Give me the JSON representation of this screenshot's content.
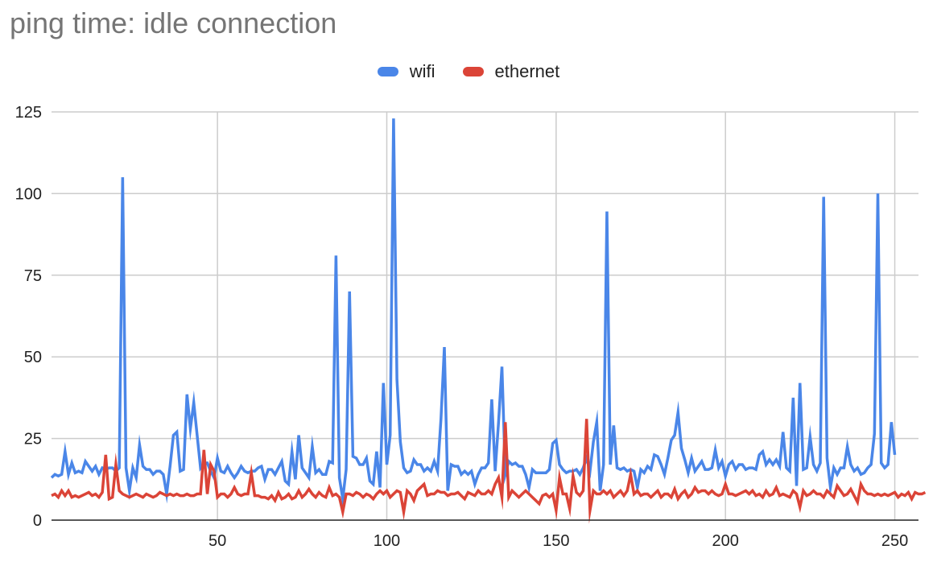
{
  "chart_data": {
    "type": "line",
    "title": "ping time: idle connection",
    "xlabel": "",
    "ylabel": "",
    "xlim": [
      1,
      257
    ],
    "ylim": [
      0,
      125
    ],
    "x_ticks": [
      50,
      100,
      150,
      200,
      250
    ],
    "y_ticks": [
      0,
      25,
      50,
      75,
      100,
      125
    ],
    "grid": true,
    "legend_position": "top-center",
    "series": [
      {
        "name": "wifi",
        "color": "#4a86e8",
        "x_start": 1,
        "values": [
          13,
          14,
          13.5,
          14,
          21,
          14,
          17.5,
          14.5,
          15,
          14.5,
          18,
          16.5,
          15,
          16.5,
          14,
          16,
          15.5,
          16,
          16,
          15,
          16,
          105,
          16,
          9,
          16,
          13,
          23,
          16.5,
          15.5,
          15.5,
          14,
          15,
          15,
          14,
          8,
          16.5,
          26,
          27,
          15,
          15.5,
          38.5,
          28,
          36,
          26,
          16,
          17.5,
          17.5,
          15,
          13,
          19,
          15,
          14.5,
          16.5,
          14.5,
          13,
          14.5,
          16.5,
          15,
          14.5,
          15,
          15,
          16,
          16.5,
          12.5,
          15.5,
          15.5,
          14,
          16,
          18,
          12,
          11,
          21,
          12.5,
          26,
          16,
          14.5,
          13,
          22.5,
          14.5,
          15.5,
          14,
          14,
          18,
          17.5,
          81,
          13,
          6.5,
          15.5,
          70,
          19.5,
          19,
          17,
          17,
          19,
          12,
          11,
          21,
          10,
          42,
          17,
          26,
          123,
          43,
          24,
          16,
          14.5,
          15,
          18.5,
          17,
          17,
          15,
          16,
          15,
          18,
          15,
          31,
          53,
          9,
          17,
          16.5,
          16.5,
          14,
          15,
          14,
          15,
          11,
          14,
          16,
          16,
          17.5,
          37,
          15,
          30,
          47,
          14,
          18,
          17,
          17.5,
          16.5,
          16.5,
          14,
          10,
          15.5,
          14.5,
          14.5,
          14.5,
          14.5,
          15.5,
          23.5,
          24.5,
          17,
          15.5,
          14.5,
          15,
          15,
          15.5,
          14,
          16,
          19,
          15,
          24,
          30,
          9,
          17,
          94.5,
          17,
          29,
          16,
          15.5,
          16,
          15,
          15.5,
          15,
          10,
          15.5,
          14.5,
          16.5,
          15.5,
          20,
          19.5,
          17,
          14,
          19,
          24.5,
          26,
          33,
          22,
          18.5,
          14.5,
          19,
          15,
          16.5,
          18,
          15.5,
          15.5,
          16,
          21.5,
          16,
          18,
          13.5,
          17,
          18,
          15.5,
          17,
          17,
          15.5,
          16,
          16,
          15.5,
          20,
          21,
          17,
          18.5,
          17,
          18.5,
          16.5,
          27,
          16,
          15,
          37.5,
          10.5,
          42,
          15.5,
          16,
          25.5,
          17,
          15,
          17.5,
          99,
          19,
          10,
          16,
          14,
          16,
          16,
          22.5,
          17,
          15,
          16,
          14,
          14.5,
          16,
          17,
          26.5,
          100,
          17.5,
          16,
          17,
          30,
          20
        ]
      },
      {
        "name": "ethernet",
        "color": "#db4437",
        "x_start": 1,
        "values": [
          7.5,
          8,
          7,
          9,
          7.5,
          9,
          7,
          7.5,
          7,
          7.5,
          8,
          8.5,
          7.5,
          8,
          7,
          8.5,
          20,
          6.5,
          7,
          17,
          9,
          8,
          7.5,
          7,
          7.5,
          8,
          7.5,
          7,
          8,
          7.5,
          7,
          7.5,
          8.5,
          8,
          7.5,
          8,
          7.5,
          8,
          7.5,
          7.5,
          8,
          7.5,
          7.5,
          8,
          8,
          21.5,
          8,
          17,
          15,
          7,
          8,
          8,
          7,
          8,
          10,
          8,
          7.5,
          8,
          8,
          14.5,
          7.5,
          7.5,
          7,
          7,
          6.5,
          7.5,
          6,
          8.5,
          6.5,
          7,
          8,
          6.5,
          7,
          9,
          7,
          8,
          9.5,
          8,
          7,
          8.5,
          7.5,
          7,
          10,
          7.5,
          8,
          7,
          2.5,
          8,
          8,
          7.5,
          8.5,
          8,
          7,
          8,
          7.5,
          6.5,
          8,
          9,
          8,
          9,
          7,
          8,
          9,
          8.5,
          2.5,
          9,
          8,
          6,
          9,
          10,
          11,
          7.5,
          8,
          8,
          9,
          8.5,
          8.5,
          7.5,
          8,
          8,
          8.5,
          7.5,
          6.5,
          8.5,
          8,
          7.5,
          9,
          8,
          8,
          9,
          8,
          11,
          13,
          7,
          30,
          7,
          9,
          8,
          7,
          8,
          9,
          8,
          7,
          6,
          5,
          7.5,
          8,
          7,
          8,
          3,
          13,
          8,
          8,
          3.5,
          13.5,
          8.5,
          7.5,
          9,
          31,
          3,
          9,
          8,
          8,
          9,
          8,
          9,
          7,
          8,
          9,
          7.5,
          9,
          14,
          8,
          9,
          7.5,
          8,
          8,
          7,
          8,
          9,
          7,
          8,
          8,
          7,
          9.5,
          6.5,
          8,
          9,
          7,
          8,
          10,
          8.5,
          9,
          9,
          8,
          9,
          8,
          7.5,
          8,
          11,
          8,
          8,
          7.5,
          8,
          8.5,
          9,
          8,
          9,
          7.5,
          8,
          7,
          9,
          7.5,
          8,
          10,
          7.5,
          8,
          7.5,
          7,
          9,
          8,
          4,
          9,
          7.5,
          8,
          9,
          8,
          8,
          7,
          9,
          8,
          7,
          10.5,
          9,
          7.5,
          8,
          9.5,
          7.5,
          5.5,
          11,
          9,
          8,
          8,
          7.5,
          8,
          7.5,
          8,
          7.5,
          8,
          8.5,
          7,
          8,
          7.5,
          8.5,
          6.5,
          8.5,
          8,
          8,
          8.5
        ]
      }
    ]
  }
}
